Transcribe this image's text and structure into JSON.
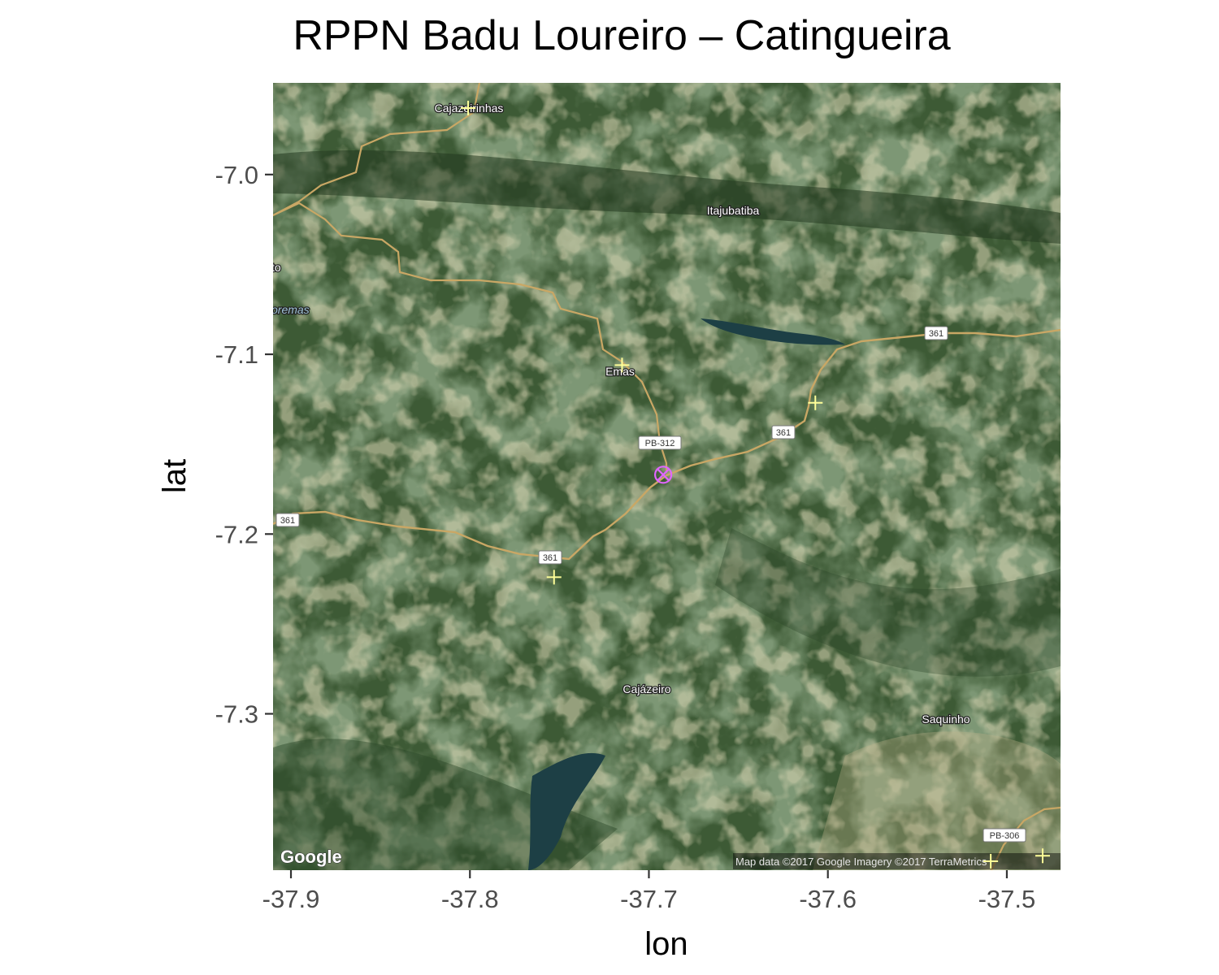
{
  "title": "RPPN Badu Loureiro – Catingueira",
  "axes": {
    "xlabel": "lon",
    "ylabel": "lat",
    "x_ticks": [
      "-37.9",
      "-37.8",
      "-37.7",
      "-37.6",
      "-37.5"
    ],
    "y_ticks": [
      "-7.0",
      "-7.1",
      "-7.2",
      "-7.3"
    ],
    "xlim": [
      -37.91,
      -37.47
    ],
    "ylim": [
      -7.387,
      -6.949
    ]
  },
  "chart_data": {
    "type": "scatter",
    "basemap": "satellite",
    "xlabel": "lon",
    "ylabel": "lat",
    "xlim": [
      -37.91,
      -37.47
    ],
    "ylim": [
      -7.387,
      -6.949
    ],
    "series": [
      {
        "marker": "plus",
        "color": "#ffff99",
        "points": [
          {
            "x": -37.801,
            "y": -6.963
          },
          {
            "x": -37.715,
            "y": -7.106
          },
          {
            "x": -37.607,
            "y": -7.127
          },
          {
            "x": -37.753,
            "y": -7.224
          },
          {
            "x": -37.509,
            "y": -7.382
          },
          {
            "x": -37.48,
            "y": -7.379
          }
        ]
      },
      {
        "marker": "circle-x",
        "color": "#e066ff",
        "points": [
          {
            "x": -37.692,
            "y": -7.167
          }
        ]
      }
    ]
  },
  "map": {
    "places": [
      "Cajazeirinhas",
      "Itajubatiba",
      "Emas",
      "Cajázeiro",
      "Saquinho",
      "to",
      "oremas"
    ],
    "road_shields": [
      "361",
      "361",
      "361",
      "361",
      "PB-312",
      "PB-306"
    ],
    "google_logo": "Google",
    "attribution": "Map data ©2017 Google  Imagery ©2017 TerraMetrics"
  },
  "colors": {
    "land": "#3d5a35",
    "dark_forest": "#22391f",
    "light_terrain": "#b9b07a",
    "water": "#1d3f45",
    "road": "#c9a765",
    "plus_marker": "#ffff99",
    "site_marker": "#e066ff"
  }
}
